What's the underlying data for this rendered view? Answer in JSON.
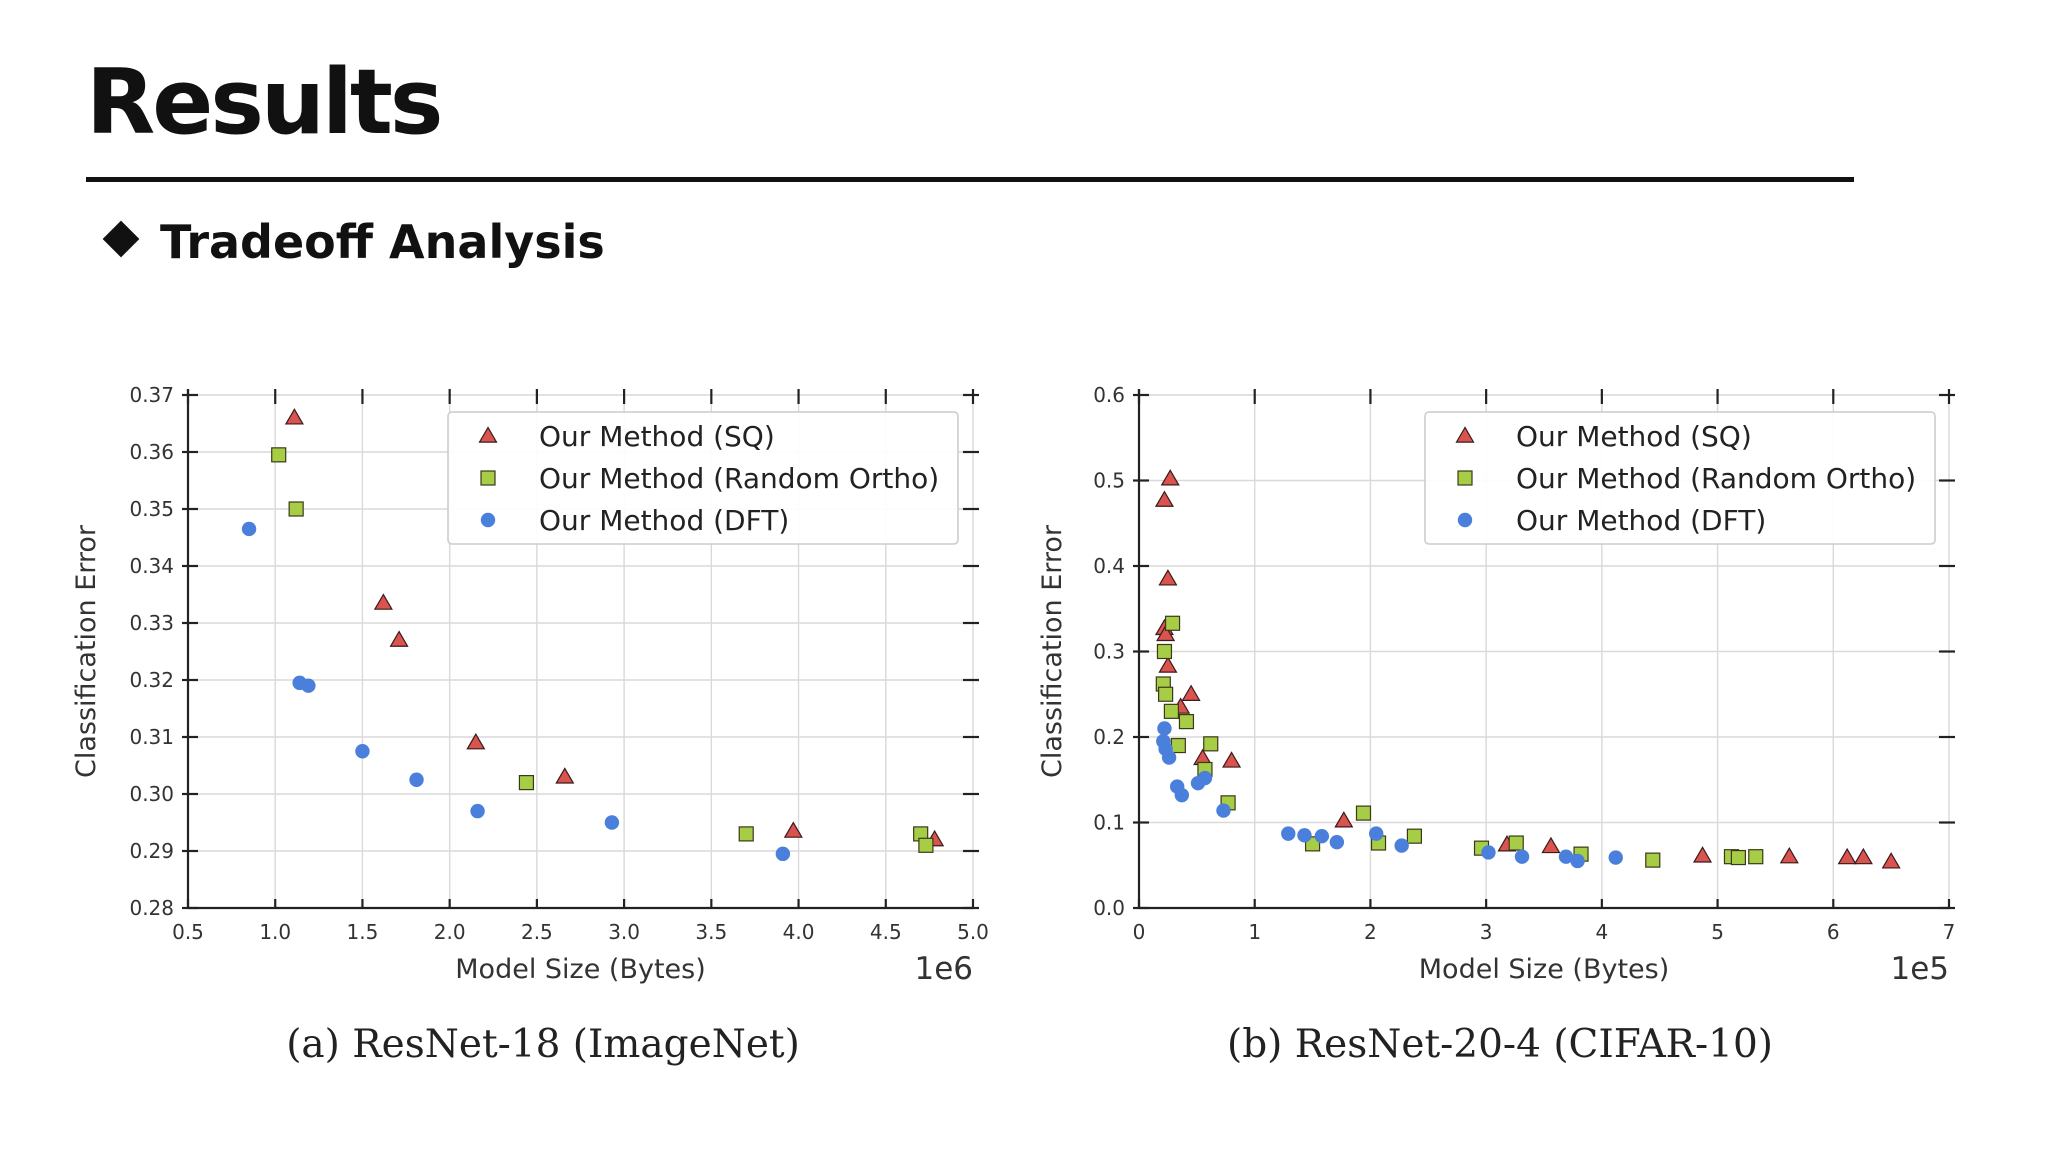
{
  "slide": {
    "title": "Results",
    "section_heading": "Tradeoff Analysis",
    "captions": [
      "(a) ResNet-18 (ImageNet)",
      "(b) ResNet-20-4 (CIFAR-10)"
    ]
  },
  "colors": {
    "sq": "#d9534f",
    "random_ortho": "#a6cd45",
    "dft": "#4a7fdc",
    "grid": "#d9d9d9"
  },
  "chart_data": [
    {
      "type": "scatter",
      "title": "",
      "xlabel": "Model Size (Bytes)",
      "ylabel": "Classification Error",
      "x_multiplier": "1e6",
      "xlim": [
        0.5,
        5.0
      ],
      "ylim": [
        0.28,
        0.37
      ],
      "xticks": [
        0.5,
        1.0,
        1.5,
        2.0,
        2.5,
        3.0,
        3.5,
        4.0,
        4.5,
        5.0
      ],
      "xtick_labels": [
        "0.5",
        "1.0",
        "1.5",
        "2.0",
        "2.5",
        "3.0",
        "3.5",
        "4.0",
        "4.5",
        "5.0"
      ],
      "yticks": [
        0.28,
        0.29,
        0.3,
        0.31,
        0.32,
        0.33,
        0.34,
        0.35,
        0.36,
        0.37
      ],
      "ytick_labels": [
        "0.28",
        "0.29",
        "0.30",
        "0.31",
        "0.32",
        "0.33",
        "0.34",
        "0.35",
        "0.36",
        "0.37"
      ],
      "grid": true,
      "legend_position": "top-right",
      "series": [
        {
          "name": "Our Method (SQ)",
          "marker": "triangle",
          "color_key": "sq",
          "x": [
            1.11,
            1.62,
            1.71,
            2.15,
            2.66,
            3.97,
            4.78
          ],
          "y": [
            0.366,
            0.3335,
            0.327,
            0.309,
            0.303,
            0.2935,
            0.292
          ]
        },
        {
          "name": "Our Method (Random Ortho)",
          "marker": "square",
          "color_key": "random_ortho",
          "x": [
            1.02,
            1.12,
            2.44,
            3.7,
            4.7,
            4.73
          ],
          "y": [
            0.3595,
            0.35,
            0.302,
            0.293,
            0.293,
            0.291
          ]
        },
        {
          "name": "Our Method (DFT)",
          "marker": "circle",
          "color_key": "dft",
          "x": [
            0.85,
            1.14,
            1.19,
            1.5,
            1.81,
            2.16,
            2.93,
            3.91
          ],
          "y": [
            0.3465,
            0.3195,
            0.319,
            0.3075,
            0.3025,
            0.297,
            0.295,
            0.2895
          ]
        }
      ]
    },
    {
      "type": "scatter",
      "title": "",
      "xlabel": "Model Size (Bytes)",
      "ylabel": "Classification Error",
      "x_multiplier": "1e5",
      "xlim": [
        0,
        7
      ],
      "ylim": [
        0.0,
        0.6
      ],
      "xticks": [
        0,
        1,
        2,
        3,
        4,
        5,
        6,
        7
      ],
      "xtick_labels": [
        "0",
        "1",
        "2",
        "3",
        "4",
        "5",
        "6",
        "7"
      ],
      "yticks": [
        0.0,
        0.1,
        0.2,
        0.3,
        0.4,
        0.5,
        0.6
      ],
      "ytick_labels": [
        "0.0",
        "0.1",
        "0.2",
        "0.3",
        "0.4",
        "0.5",
        "0.6"
      ],
      "grid": true,
      "legend_position": "top-right",
      "series": [
        {
          "name": "Our Method (SQ)",
          "marker": "triangle",
          "color_key": "sq",
          "x": [
            0.27,
            0.22,
            0.25,
            0.22,
            0.23,
            0.25,
            0.36,
            0.45,
            0.55,
            0.8,
            1.77,
            3.18,
            3.56,
            4.87,
            5.62,
            6.12,
            6.26,
            6.5
          ],
          "y": [
            0.502,
            0.477,
            0.385,
            0.327,
            0.32,
            0.283,
            0.235,
            0.25,
            0.175,
            0.172,
            0.102,
            0.074,
            0.072,
            0.061,
            0.06,
            0.059,
            0.059,
            0.054
          ]
        },
        {
          "name": "Our Method (Random Ortho)",
          "marker": "square",
          "color_key": "random_ortho",
          "x": [
            0.29,
            0.22,
            0.21,
            0.23,
            0.28,
            0.34,
            0.41,
            0.57,
            0.62,
            0.77,
            1.5,
            1.94,
            2.07,
            2.38,
            2.96,
            3.26,
            3.82,
            4.44,
            5.12,
            5.18,
            5.33
          ],
          "y": [
            0.333,
            0.3,
            0.262,
            0.25,
            0.23,
            0.19,
            0.218,
            0.162,
            0.192,
            0.123,
            0.075,
            0.111,
            0.076,
            0.084,
            0.07,
            0.076,
            0.063,
            0.056,
            0.06,
            0.059,
            0.06
          ]
        },
        {
          "name": "Our Method (DFT)",
          "marker": "circle",
          "color_key": "dft",
          "x": [
            0.22,
            0.21,
            0.23,
            0.26,
            0.33,
            0.37,
            0.51,
            0.57,
            0.73,
            1.29,
            1.43,
            1.58,
            1.71,
            2.05,
            2.27,
            3.02,
            3.31,
            3.69,
            3.79,
            4.12
          ],
          "y": [
            0.21,
            0.195,
            0.186,
            0.176,
            0.142,
            0.132,
            0.146,
            0.152,
            0.114,
            0.087,
            0.085,
            0.084,
            0.077,
            0.087,
            0.073,
            0.065,
            0.06,
            0.06,
            0.055,
            0.059
          ]
        }
      ]
    }
  ]
}
